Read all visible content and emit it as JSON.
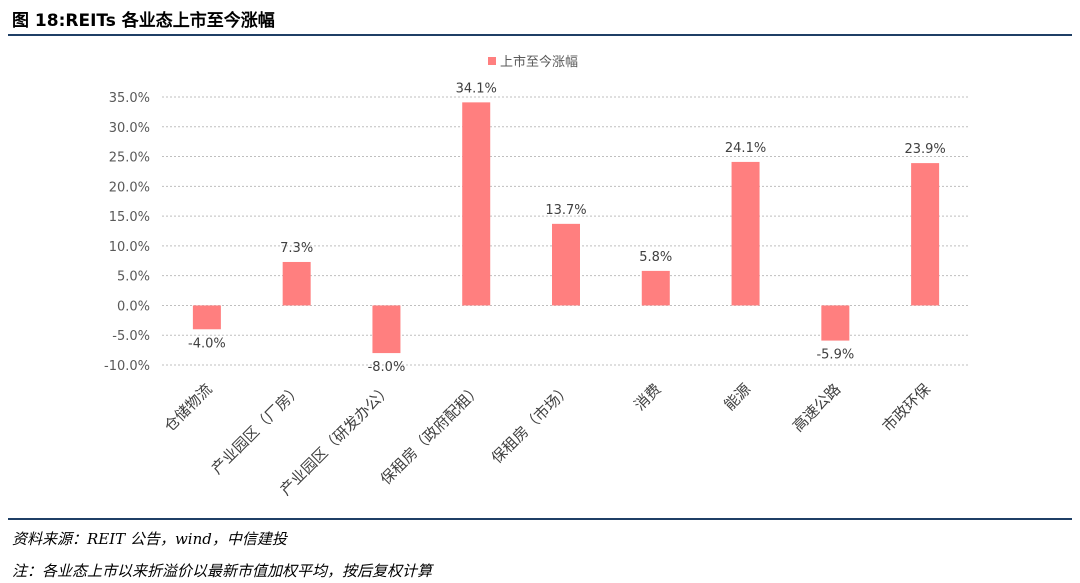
{
  "figure": {
    "title": "图 18:REITs 各业态上市至今涨幅"
  },
  "chart_data": {
    "type": "bar",
    "series": [
      {
        "name": "上市至今涨幅",
        "values": [
          -4.0,
          7.3,
          -8.0,
          34.1,
          13.7,
          5.8,
          24.1,
          -5.9,
          23.9
        ]
      }
    ],
    "categories": [
      "仓储物流",
      "产业园区（厂房）",
      "产业园区（研发办公）",
      "保租房（政府配租）",
      "保租房（市场）",
      "消费",
      "能源",
      "高速公路",
      "市政环保"
    ],
    "data_labels": [
      "-4.0%",
      "7.3%",
      "-8.0%",
      "34.1%",
      "13.7%",
      "5.8%",
      "24.1%",
      "-5.9%",
      "23.9%"
    ],
    "yticks": [
      "35.0%",
      "30.0%",
      "25.0%",
      "20.0%",
      "15.0%",
      "10.0%",
      "5.0%",
      "0.0%",
      "-5.0%",
      "-10.0%"
    ],
    "ylim": [
      -10,
      35
    ],
    "grid": "horizontal dashed",
    "legend_position": "top-center",
    "colors": {
      "bar": "#ff7f7f",
      "grid": "#bfbfbf",
      "rule": "#1f3f66"
    }
  },
  "notes": {
    "source": "资料来源：REIT 公告，wind，中信建投",
    "footnote": "注：各业态上市以来折溢价以最新市值加权平均，按后复权计算"
  }
}
